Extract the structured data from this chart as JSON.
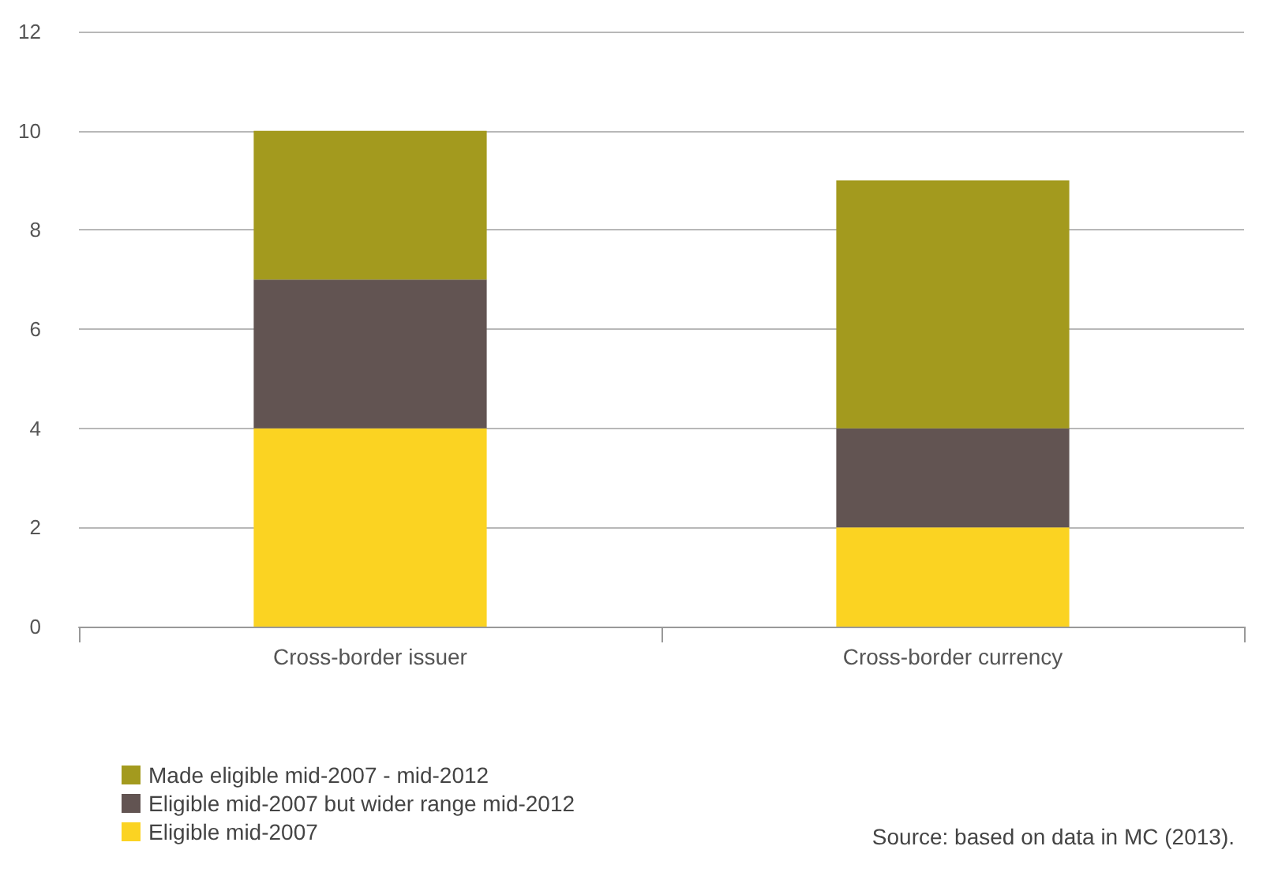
{
  "chart_data": {
    "type": "bar",
    "stacked": true,
    "categories": [
      "Cross-border issuer",
      "Cross-border currency"
    ],
    "series": [
      {
        "name": "Eligible mid-2007",
        "color": "#fbd322",
        "values": [
          4,
          2
        ]
      },
      {
        "name": "Eligible mid-2007 but wider range mid-2012",
        "color": "#625452",
        "values": [
          3,
          2
        ]
      },
      {
        "name": "Made eligible mid-2007 - mid-2012",
        "color": "#a39a1e",
        "values": [
          3,
          5
        ]
      }
    ],
    "ylim": [
      0,
      12
    ],
    "yticks": [
      0,
      2,
      4,
      6,
      8,
      10,
      12
    ],
    "grid": "y",
    "legend": "bottom left",
    "annotations": [
      "Source: based on data in MC (2013)."
    ]
  }
}
